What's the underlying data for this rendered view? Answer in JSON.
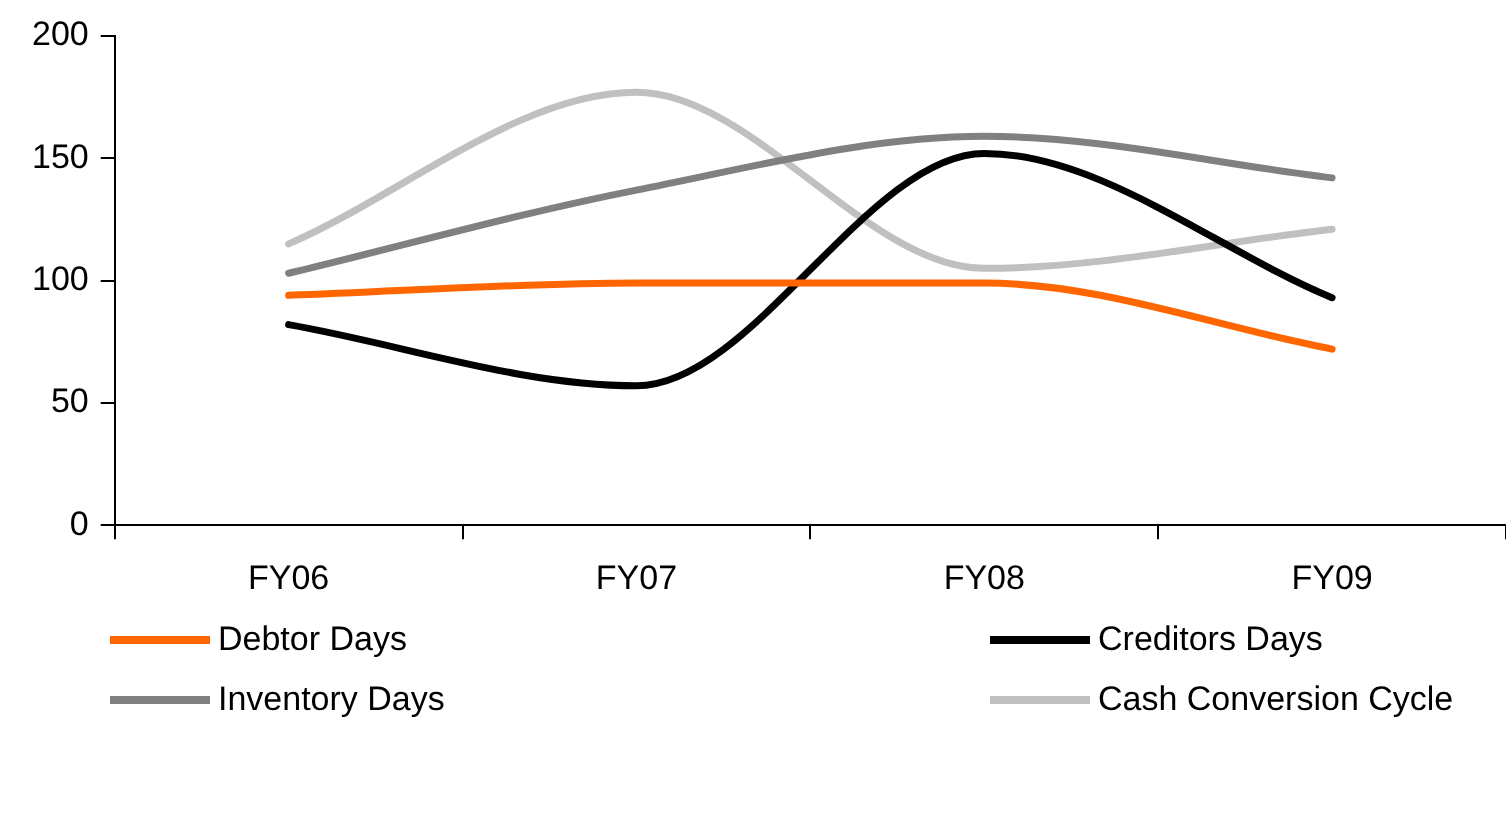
{
  "chart_data": {
    "type": "line",
    "categories": [
      "FY06",
      "FY07",
      "FY08",
      "FY09"
    ],
    "series": [
      {
        "name": "Debtor Days",
        "color": "#ff6600",
        "values": [
          94,
          99,
          99,
          72
        ]
      },
      {
        "name": "Creditors Days",
        "color": "#000000",
        "values": [
          82,
          57,
          152,
          93
        ]
      },
      {
        "name": "Inventory Days",
        "color": "#808080",
        "values": [
          103,
          137,
          159,
          142
        ]
      },
      {
        "name": "Cash Conversion Cycle",
        "color": "#c0c0c0",
        "values": [
          115,
          177,
          105,
          121
        ]
      }
    ],
    "ylim": [
      0,
      200
    ],
    "yticks": [
      0,
      50,
      100,
      150,
      200
    ],
    "grid": false,
    "legend": "bottom",
    "marker": "none",
    "line_style": "solid"
  }
}
